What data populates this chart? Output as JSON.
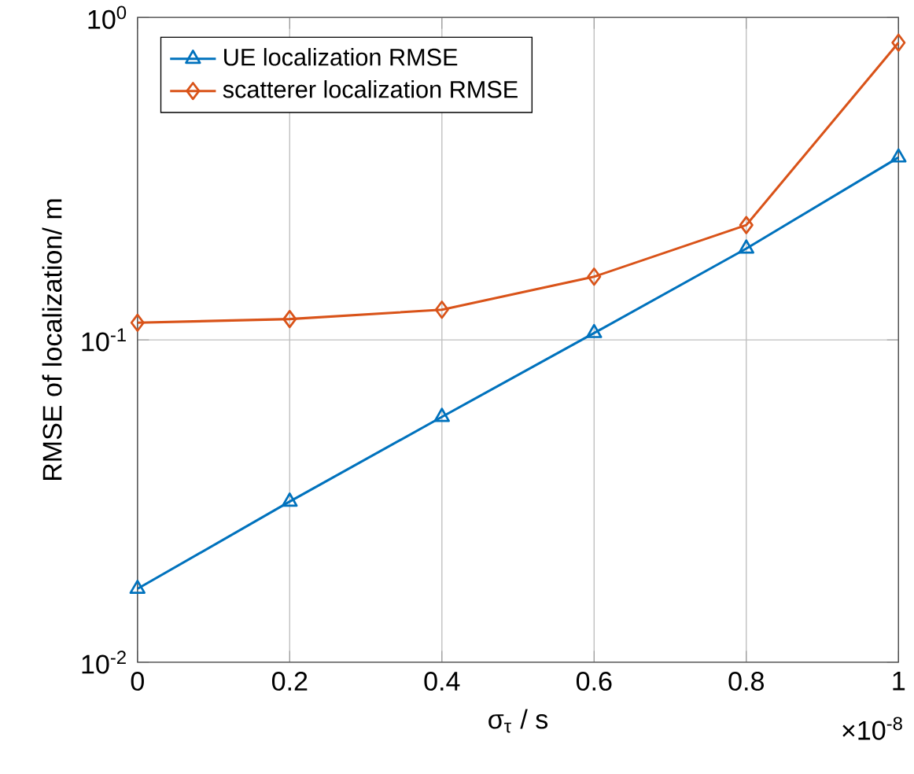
{
  "chart_data": {
    "type": "line",
    "xlabel": "σ$_{τ}$ / s",
    "ylabel": "RMSE of localization/ m",
    "x": [
      0,
      0.2,
      0.4,
      0.6,
      0.8,
      1
    ],
    "series": [
      {
        "name": "UE localization RMSE",
        "color": "#0072bd",
        "marker": "triangle",
        "values": [
          0.0169,
          0.0315,
          0.0577,
          0.105,
          0.192,
          0.368
        ]
      },
      {
        "name": "scatterer localization RMSE",
        "color": "#d95319",
        "marker": "diamond",
        "values": [
          0.113,
          0.116,
          0.124,
          0.157,
          0.227,
          0.835
        ]
      }
    ],
    "log": "y",
    "xlim": [
      0,
      1
    ],
    "ylim": [
      0.01,
      1
    ],
    "xticks": [
      0,
      0.2,
      0.4,
      0.6,
      0.8,
      1
    ],
    "yticks": [
      {
        "value": 0.01,
        "label": "10$^{-2}$"
      },
      {
        "value": 0.1,
        "label": "10$^{-1}$"
      },
      {
        "value": 1,
        "label": "10$^{0}$"
      }
    ],
    "annotations": [
      "×10$^{-8}$"
    ],
    "grid": true,
    "legend": "top left",
    "line_style": "solid"
  }
}
